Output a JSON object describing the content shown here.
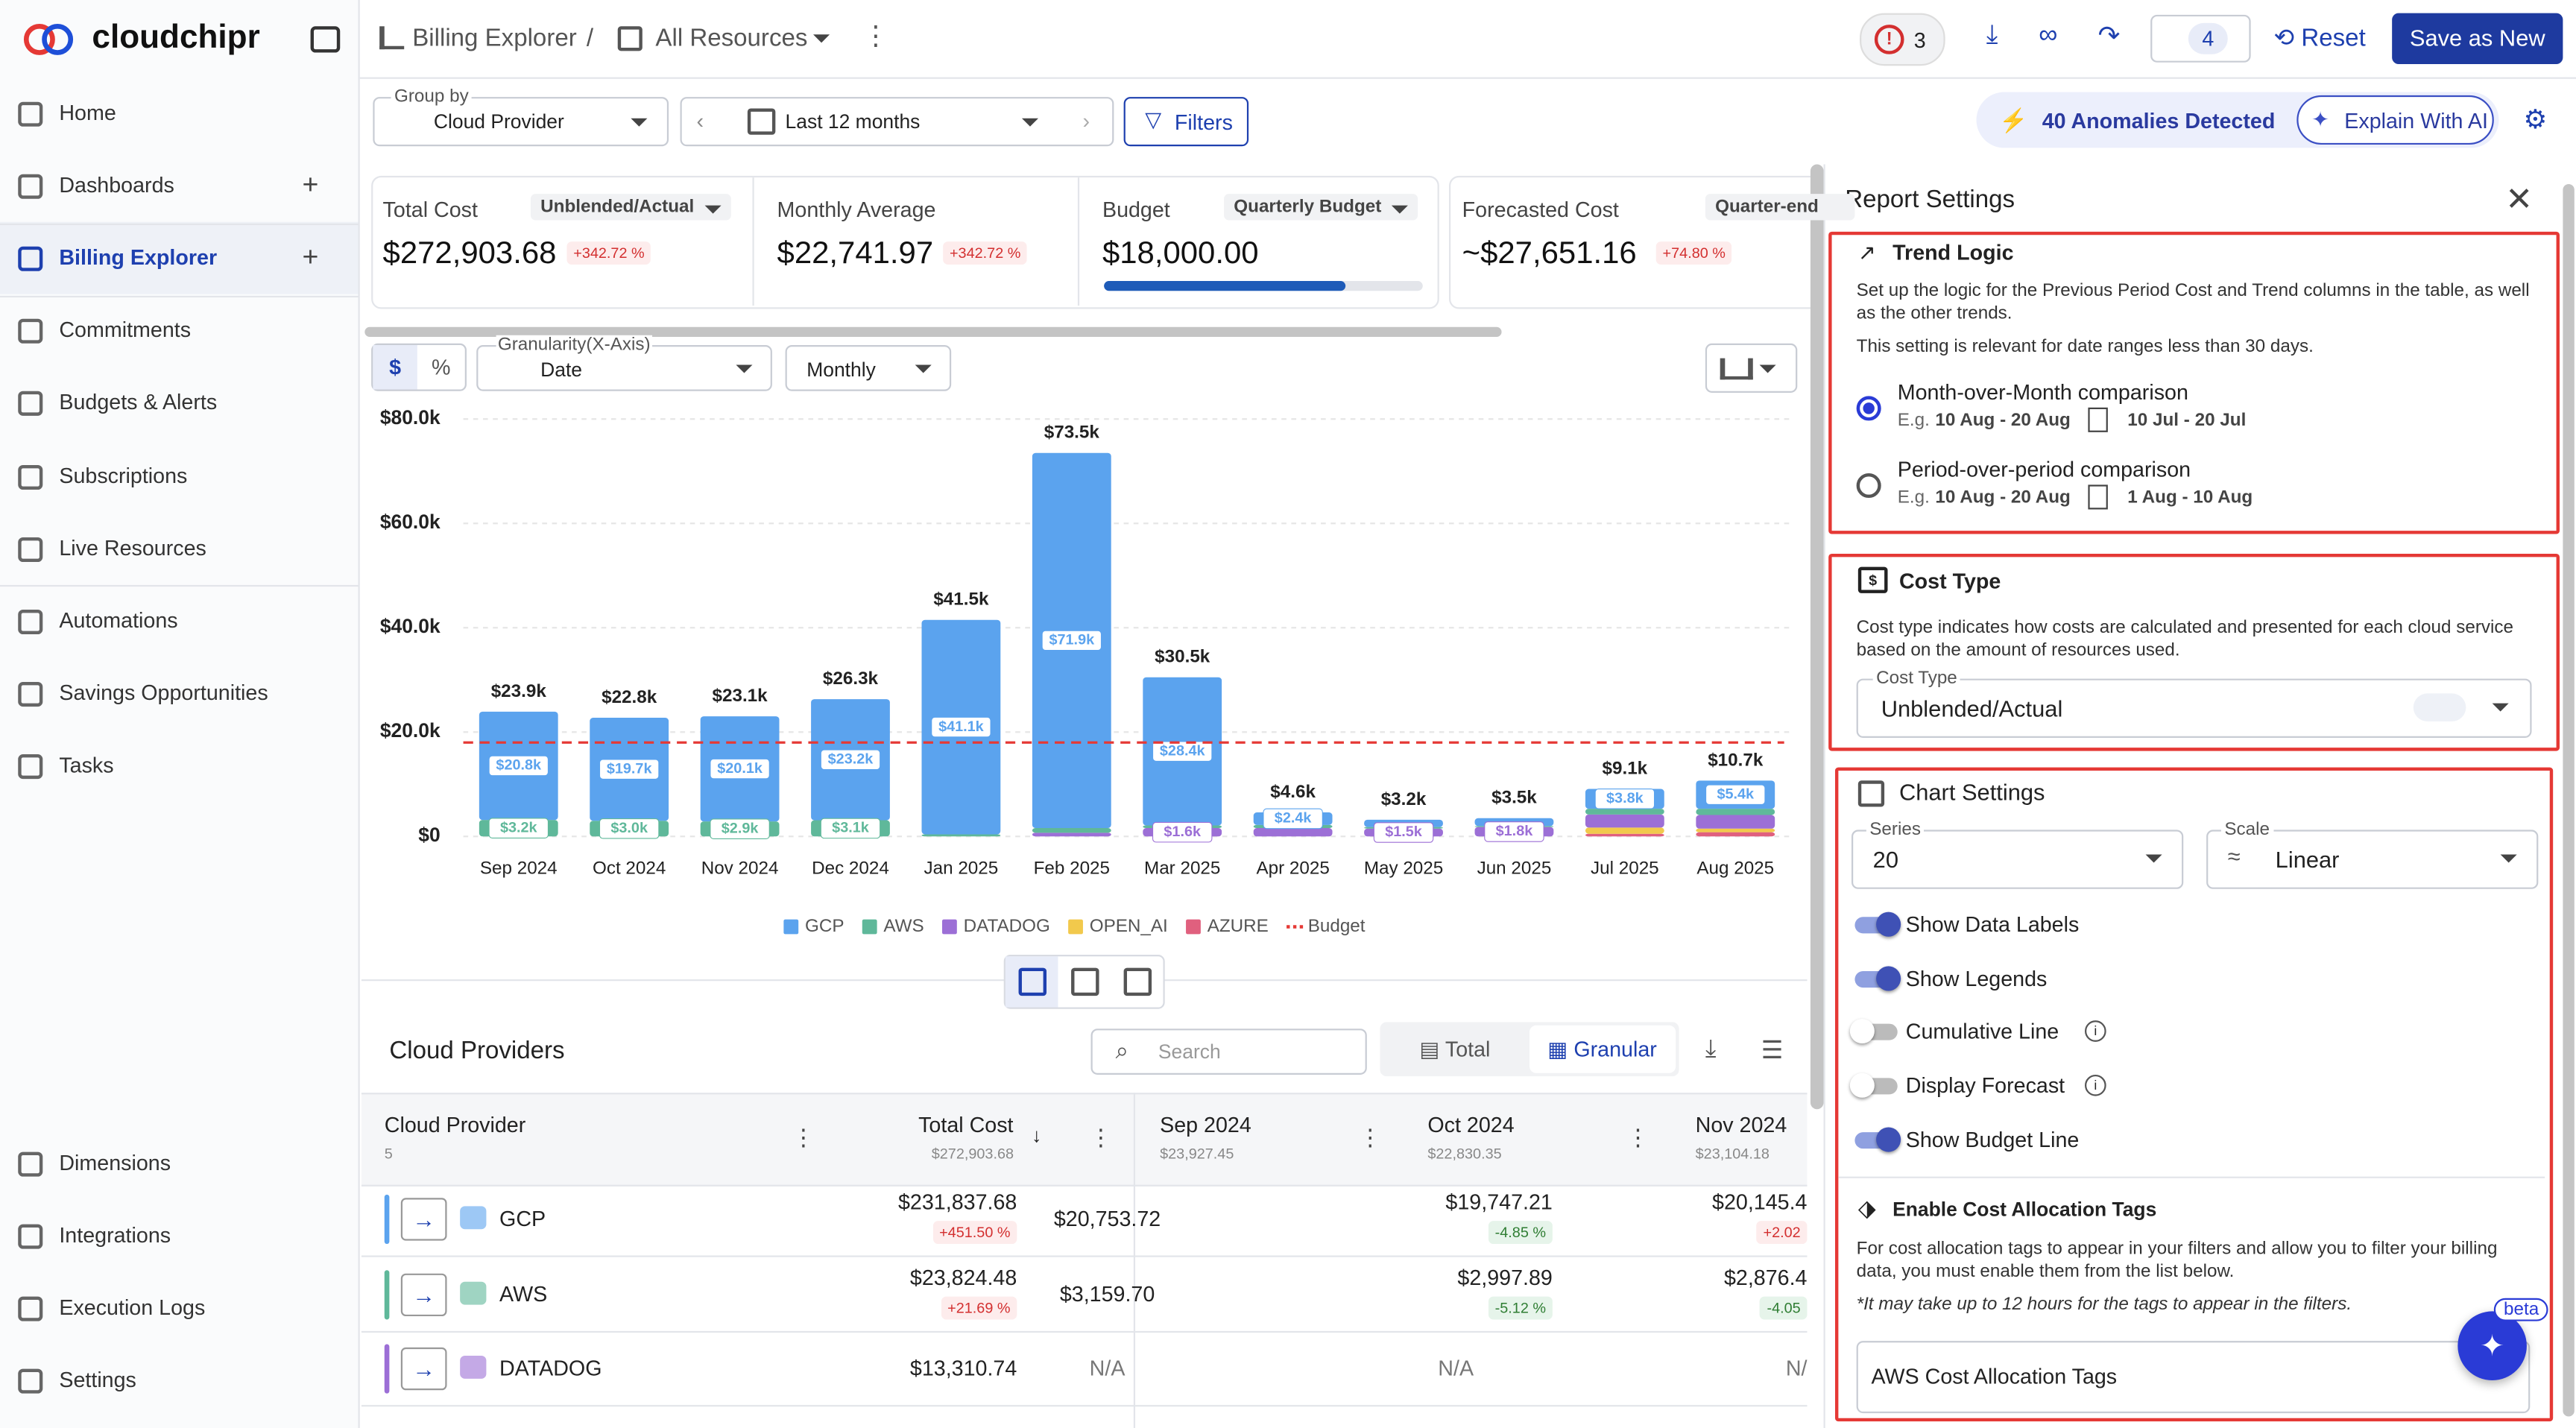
{
  "sidebar": {
    "brand": "cloudchipr",
    "nav": [
      "Home",
      "Dashboards",
      "Billing Explorer",
      "Commitments",
      "Budgets & Alerts",
      "Subscriptions",
      "Live Resources",
      "Automations",
      "Savings Opportunities",
      "Tasks"
    ],
    "active": "Billing Explorer",
    "bottom_nav": [
      "Dimensions",
      "Integrations",
      "Execution Logs",
      "Settings"
    ]
  },
  "topbar": {
    "crumb1": "Billing Explorer",
    "crumb2": "All Resources",
    "alerts": "3",
    "badge": "4",
    "reset": "Reset",
    "save": "Save as New"
  },
  "toolbar": {
    "group_by_label": "Group by",
    "group_by": "Cloud Provider",
    "date_range": "Last 12 months",
    "filters": "Filters",
    "anomalies": "40 Anomalies Detected",
    "explain": "Explain With AI"
  },
  "summary": [
    {
      "label": "Total Cost",
      "tag": "Unblended/Actual",
      "value": "$272,903.68",
      "trend": "+342.72 %"
    },
    {
      "label": "Monthly Average",
      "value": "$22,741.97",
      "trend": "+342.72 %"
    },
    {
      "label": "Budget",
      "tag": "Quarterly Budget",
      "value": "$18,000.00"
    },
    {
      "label": "Forecasted Cost",
      "tag": "Quarter-end",
      "value": "~$27,651.16",
      "trend": "+74.80 %"
    }
  ],
  "chart_controls": {
    "currency": "$",
    "percent": "%",
    "granularity_label": "Granularity(X-Axis)",
    "granularity": "Date",
    "period": "Monthly"
  },
  "chart_data": {
    "type": "bar",
    "stacked": true,
    "categories": [
      "Sep 2024",
      "Oct 2024",
      "Nov 2024",
      "Dec 2024",
      "Jan 2025",
      "Feb 2025",
      "Mar 2025",
      "Apr 2025",
      "May 2025",
      "Jun 2025",
      "Jul 2025",
      "Aug 2025"
    ],
    "total_labels": [
      "$23.9k",
      "$22.8k",
      "$23.1k",
      "$26.3k",
      "$41.5k",
      "$73.5k",
      "$30.5k",
      "$4.6k",
      "$3.2k",
      "$3.5k",
      "$9.1k",
      "$10.7k"
    ],
    "series": [
      {
        "name": "GCP",
        "color": "#5ba3ee",
        "values": [
          20753.72,
          19747.21,
          20145,
          23200,
          41100,
          71900,
          28400,
          2400,
          1400,
          1500,
          3800,
          5400
        ],
        "value_labels": [
          "$20.8k",
          "$19.7k",
          "$20.1k",
          "$23.2k",
          "$41.1k",
          "$71.9k",
          "$28.4k",
          "$2.4k",
          null,
          null,
          "$3.8k",
          "$5.4k"
        ]
      },
      {
        "name": "AWS",
        "color": "#5fb89a",
        "values": [
          3159.7,
          2997.89,
          2876,
          3100,
          400,
          900,
          500,
          600,
          300,
          200,
          1100,
          1200
        ],
        "value_labels": [
          "$3.2k",
          "$3.0k",
          "$2.9k",
          "$3.1k",
          null,
          null,
          null,
          null,
          null,
          null,
          null,
          null
        ]
      },
      {
        "name": "DATADOG",
        "color": "#9c6fd6",
        "values": [
          0,
          0,
          0,
          0,
          0,
          700,
          1600,
          1600,
          1500,
          1800,
          2500,
          2600
        ],
        "value_labels": [
          null,
          null,
          null,
          null,
          null,
          null,
          "$1.6k",
          null,
          "$1.5k",
          "$1.8k",
          null,
          null
        ]
      },
      {
        "name": "OPEN_AI",
        "color": "#f2c94c",
        "values": [
          0,
          0,
          0,
          0,
          0,
          0,
          0,
          0,
          0,
          0,
          1200,
          700
        ],
        "value_labels": [
          null,
          null,
          null,
          null,
          null,
          null,
          null,
          null,
          null,
          null,
          null,
          null
        ]
      },
      {
        "name": "AZURE",
        "color": "#e0607e",
        "values": [
          0,
          0,
          0,
          0,
          0,
          0,
          0,
          0,
          0,
          0,
          500,
          800
        ],
        "value_labels": [
          null,
          null,
          null,
          null,
          null,
          null,
          null,
          null,
          null,
          null,
          null,
          null
        ]
      }
    ],
    "budget": {
      "name": "Budget",
      "value": 18000,
      "color": "#e53935"
    },
    "ylim": [
      0,
      80000
    ],
    "yticks": [
      {
        "value": 0,
        "label": "$0"
      },
      {
        "value": 20000,
        "label": "$20.0k"
      },
      {
        "value": 40000,
        "label": "$40.0k"
      },
      {
        "value": 60000,
        "label": "$60.0k"
      },
      {
        "value": 80000,
        "label": "$80.0k"
      }
    ],
    "grid": true,
    "legend": "bottom"
  },
  "table": {
    "title": "Cloud Providers",
    "search": "Search",
    "total_btn": "Total",
    "granular_btn": "Granular",
    "columns": [
      {
        "name": "Cloud Provider",
        "sub": "5"
      },
      {
        "name": "Total Cost",
        "sub": "$272,903.68"
      },
      {
        "name": "Sep 2024",
        "sub": "$23,927.45"
      },
      {
        "name": "Oct 2024",
        "sub": "$22,830.35"
      },
      {
        "name": "Nov 2024",
        "sub": "$23,104.18"
      }
    ],
    "rows": [
      {
        "name": "GCP",
        "color": "#5ba3ee",
        "cells": [
          {
            "value": "$231,837.68",
            "trend": "+451.50 %"
          },
          {
            "value": "$20,753.72"
          },
          {
            "value": "$19,747.21",
            "trend": "-4.85 %"
          },
          {
            "value": "$20,145.4",
            "trend": "+2.02"
          }
        ]
      },
      {
        "name": "AWS",
        "color": "#5fb89a",
        "cells": [
          {
            "value": "$23,824.48",
            "trend": "+21.69 %"
          },
          {
            "value": "$3,159.70"
          },
          {
            "value": "$2,997.89",
            "trend": "-5.12 %"
          },
          {
            "value": "$2,876.4",
            "trend": "-4.05"
          }
        ]
      },
      {
        "name": "DATADOG",
        "color": "#9c6fd6",
        "cells": [
          {
            "value": "$13,310.74"
          },
          {
            "value": "N/A"
          },
          {
            "value": "N/A"
          },
          {
            "value": "N/"
          }
        ]
      }
    ]
  },
  "settings": {
    "title": "Report Settings",
    "trend_logic": {
      "title": "Trend Logic",
      "desc": "Set up the logic for the Previous Period Cost and Trend columns in the table, as well as the other trends.",
      "note": "This setting is relevant for date ranges less than 30 days.",
      "options": [
        {
          "label": "Month-over-Month comparison",
          "eg": "E.g.",
          "a": "10 Aug - 20 Aug",
          "b": "10 Jul - 20 Jul",
          "selected": true
        },
        {
          "label": "Period-over-period comparison",
          "eg": "E.g.",
          "a": "10 Aug - 20 Aug",
          "b": "1 Aug - 10 Aug",
          "selected": false
        }
      ]
    },
    "cost_type": {
      "title": "Cost Type",
      "desc": "Cost type indicates how costs are calculated and presented for each cloud service based on the amount of resources used.",
      "field_label": "Cost Type",
      "value": "Unblended/Actual"
    },
    "chart_settings": {
      "title": "Chart Settings",
      "series_label": "Series",
      "series": "20",
      "scale_label": "Scale",
      "scale": "Linear",
      "toggles": [
        {
          "label": "Show Data Labels",
          "on": true
        },
        {
          "label": "Show Legends",
          "on": true
        },
        {
          "label": "Cumulative Line",
          "on": false
        },
        {
          "label": "Display Forecast",
          "on": false
        },
        {
          "label": "Show Budget Line",
          "on": true
        }
      ]
    },
    "tags": {
      "title": "Enable Cost Allocation Tags",
      "desc": "For cost allocation tags to appear in your filters and allow you to filter your billing data, you must enable them from the list below.",
      "note": "*It may take up to 12 hours for the tags to appear in the filters.",
      "button": "AWS Cost Allocation Tags"
    },
    "beta": "beta"
  }
}
